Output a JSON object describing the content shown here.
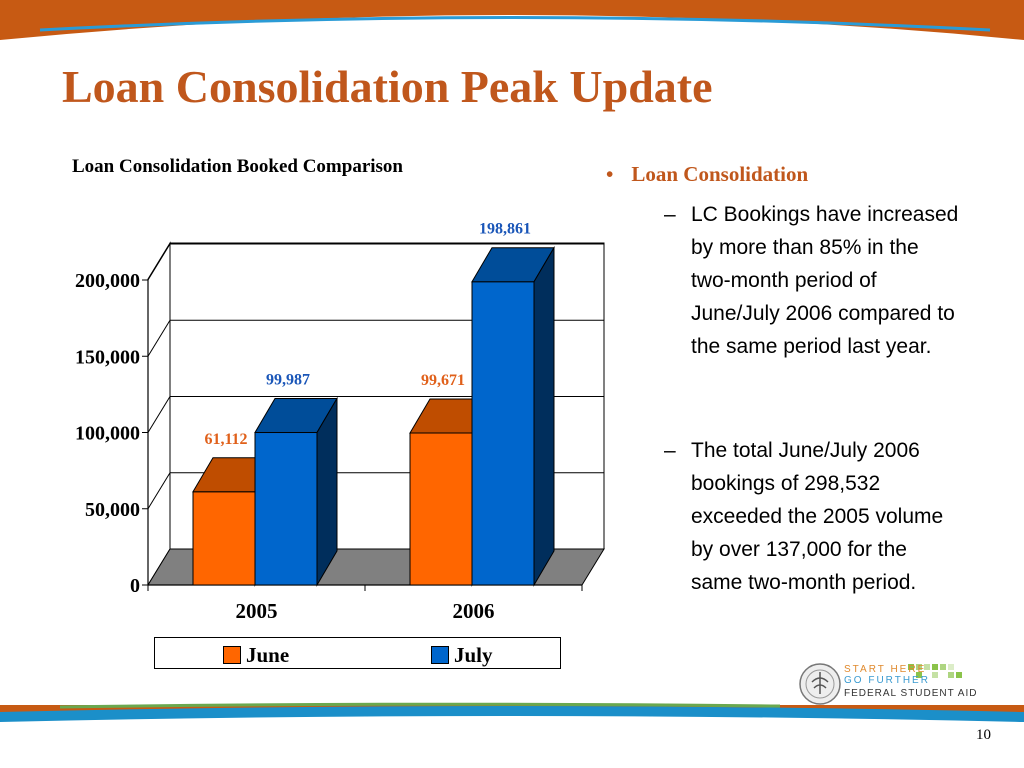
{
  "slide": {
    "title": "Loan Consolidation Peak Update",
    "page_number": "10",
    "colors": {
      "accent": "#c0571c",
      "band": "#c75a13",
      "wave": "#1b8fc9",
      "green": "#6aa84f"
    }
  },
  "bullets": {
    "heading": "Loan Consolidation",
    "items": [
      "LC Bookings have increased by more than 85% in the two-month period of June/July 2006 compared to the same period last year.",
      "The total June/July 2006 bookings of 298,532 exceeded the 2005 volume by over 137,000 for the same two-month period."
    ]
  },
  "logo": {
    "line1": "START HERE",
    "line2": "GO FURTHER",
    "line3": "FEDERAL STUDENT AID",
    "icon": "department-seal-icon"
  },
  "chart_data": {
    "type": "bar",
    "title": "Loan Consolidation Booked Comparison",
    "categories": [
      "2005",
      "2006"
    ],
    "series": [
      {
        "name": "June",
        "values": [
          61112,
          99671
        ],
        "labels": [
          "61,112",
          "99,671"
        ],
        "color": "#ff6600",
        "label_color": "#e0601a"
      },
      {
        "name": "July",
        "values": [
          99987,
          198861
        ],
        "labels": [
          "99,987",
          "198,861"
        ],
        "color": "#0066cc",
        "label_color": "#1a56b8"
      }
    ],
    "ylim": [
      0,
      200000
    ],
    "yticks": [
      "0",
      "50,000",
      "100,000",
      "150,000",
      "200,000"
    ],
    "ytick_values": [
      0,
      50000,
      100000,
      150000,
      200000
    ],
    "grid": true,
    "legend": "bottom",
    "style": "3d"
  }
}
